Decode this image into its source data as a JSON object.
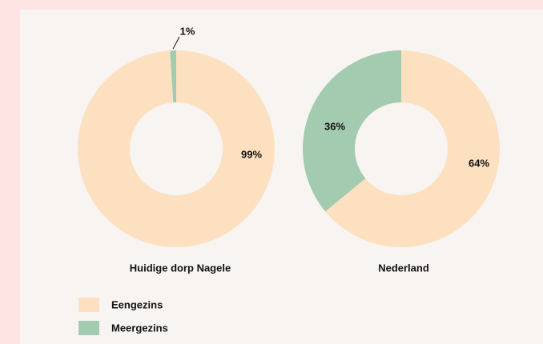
{
  "chart_data": [
    {
      "type": "donut",
      "title": "Huidige dorp Nagele",
      "categories": [
        "Eengezins",
        "Meergezins"
      ],
      "values": [
        99,
        1
      ],
      "value_labels": [
        "99%",
        "1%"
      ],
      "colors": [
        "#fce0bf",
        "#a3cbb0"
      ]
    },
    {
      "type": "donut",
      "title": "Nederland",
      "categories": [
        "Eengezins",
        "Meergezins"
      ],
      "values": [
        64,
        36
      ],
      "value_labels": [
        "64%",
        "36%"
      ],
      "colors": [
        "#fce0bf",
        "#a3cbb0"
      ]
    }
  ]
}
